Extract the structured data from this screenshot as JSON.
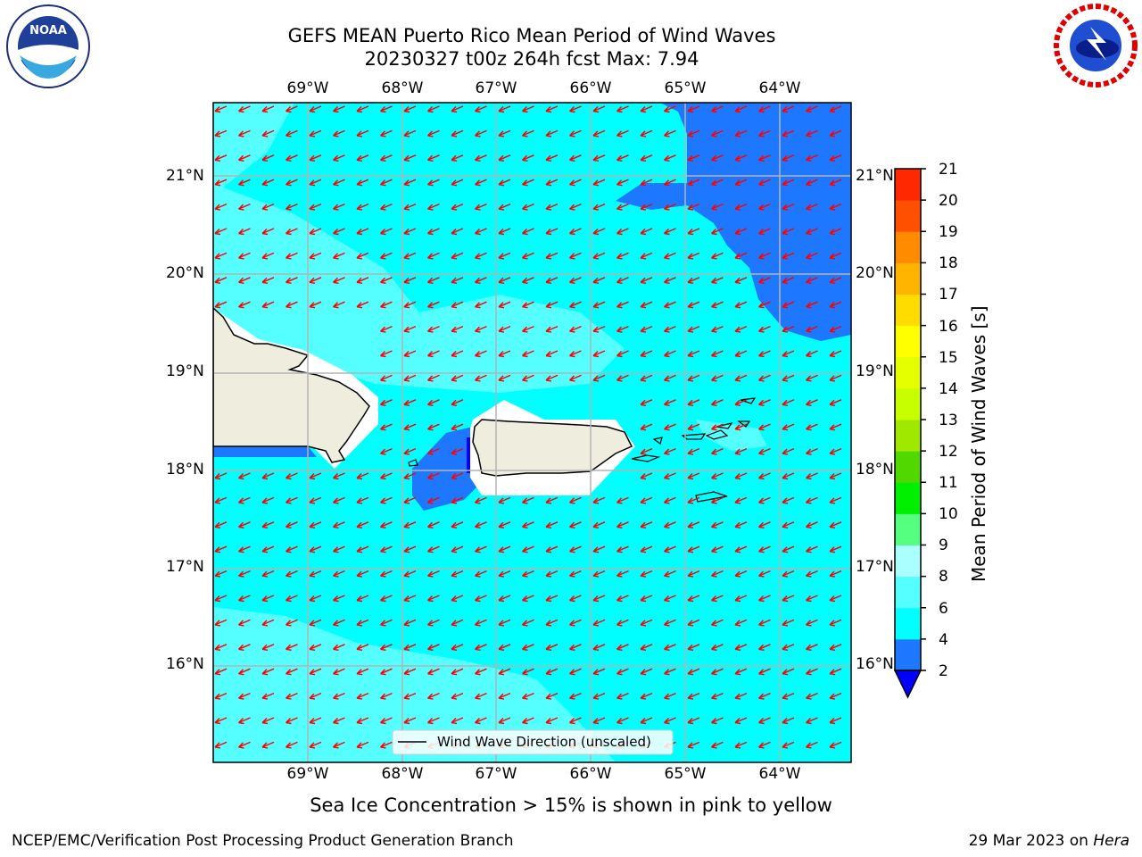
{
  "title": {
    "line1": "GEFS MEAN Puerto Rico Mean Period of Wind Waves",
    "line2": "20230327 t00z 264h fcst   Max: 7.94"
  },
  "map": {
    "lon_labels": [
      "69°W",
      "68°W",
      "67°W",
      "66°W",
      "65°W",
      "64°W"
    ],
    "lat_labels": [
      "21°N",
      "20°N",
      "19°N",
      "18°N",
      "17°N",
      "16°N"
    ],
    "legend_label": "Wind Wave Direction (unscaled)",
    "colors": {
      "ocean_main": "#00ffff",
      "ocean_light": "#55ffff",
      "ocean_dark": "#1e78ff",
      "land": "#efedde",
      "arrow": "#ff0000"
    }
  },
  "colorbar": {
    "title": "Mean Period of Wind Waves [s]",
    "ticks": [
      "2",
      "4",
      "6",
      "8",
      "9",
      "10",
      "11",
      "12",
      "13",
      "14",
      "15",
      "16",
      "17",
      "18",
      "19",
      "20",
      "21"
    ],
    "colors": [
      "#1e78ff",
      "#00ffff",
      "#55ffff",
      "#aaffff",
      "#55ff80",
      "#00f000",
      "#50d800",
      "#a0e800",
      "#c8ff00",
      "#e6ff00",
      "#ffff00",
      "#ffdc00",
      "#ffb400",
      "#ff8c00",
      "#ff5000",
      "#ff2800",
      "#ff0000"
    ],
    "extend_color": "#0000ff"
  },
  "note": "Sea Ice Concentration > 15% is shown in pink to yellow",
  "footer": {
    "left": "NCEP/EMC/Verification Post Processing Product Generation Branch",
    "right_prefix": "29 Mar 2023 on ",
    "right_machine": "Hera"
  }
}
